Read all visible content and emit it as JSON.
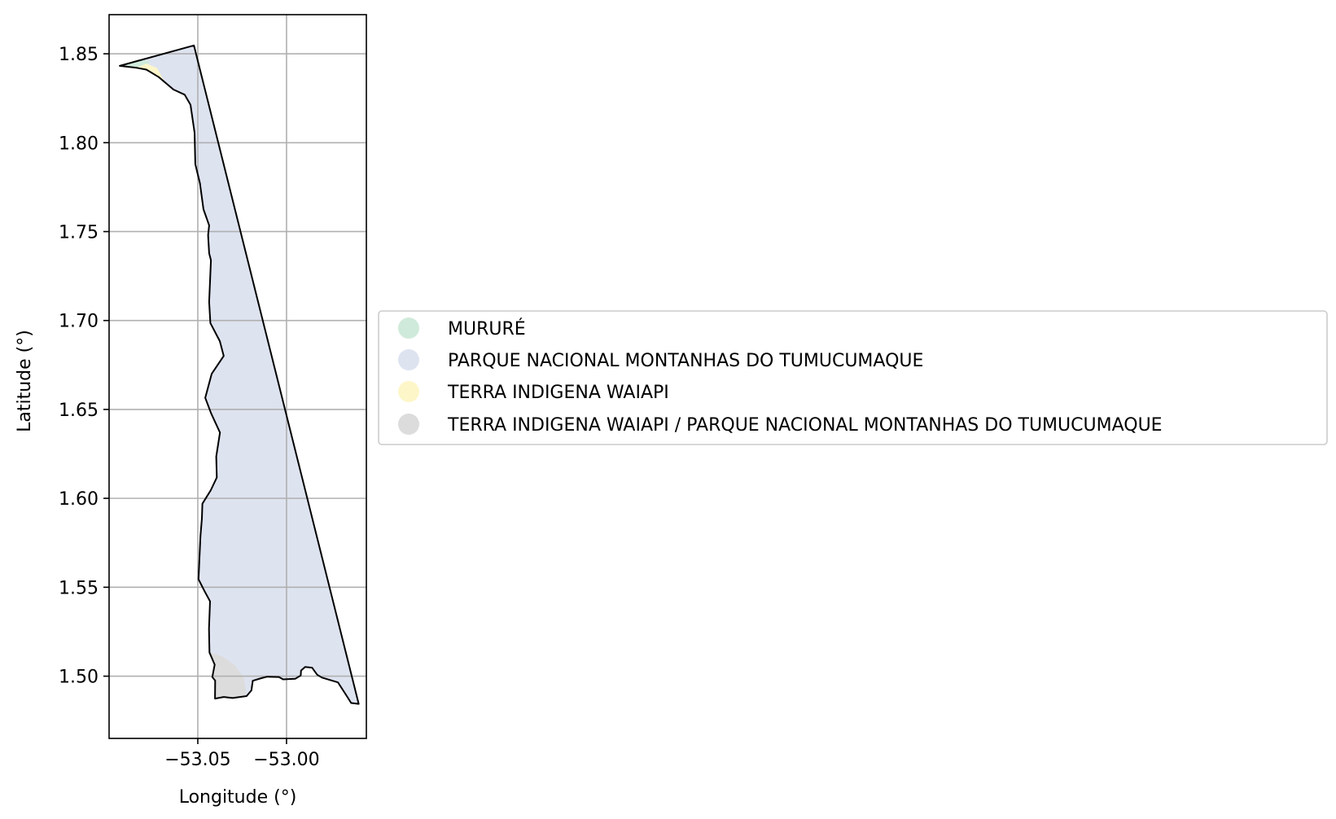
{
  "map": {
    "axes": {
      "xlabel": "Longitude (°)",
      "ylabel": "Latitude (°)",
      "xlim": [
        -53.1,
        -52.955
      ],
      "ylim": [
        1.465,
        1.872
      ],
      "xticks": [
        {
          "value": -53.05,
          "label": "−53.05"
        },
        {
          "value": -53.0,
          "label": "−53.00"
        }
      ],
      "yticks": [
        {
          "value": 1.5,
          "label": "1.50"
        },
        {
          "value": 1.55,
          "label": "1.55"
        },
        {
          "value": 1.6,
          "label": "1.60"
        },
        {
          "value": 1.65,
          "label": "1.65"
        },
        {
          "value": 1.7,
          "label": "1.70"
        },
        {
          "value": 1.75,
          "label": "1.75"
        },
        {
          "value": 1.8,
          "label": "1.80"
        },
        {
          "value": 1.85,
          "label": "1.85"
        }
      ],
      "grid": true
    },
    "legend": {
      "placement": "right",
      "items": [
        {
          "label": "MURURÉ",
          "color": "#cfeadb"
        },
        {
          "label": "PARQUE NACIONAL MONTANHAS DO TUMUCUMAQUE",
          "color": "#dee3f0"
        },
        {
          "label": "TERRA INDIGENA WAIAPI",
          "color": "#fdf6c9"
        },
        {
          "label": "TERRA INDIGENA WAIAPI / PARQUE NACIONAL MONTANHAS DO TUMUCUMAQUE",
          "color": "#dcdcdc"
        }
      ]
    },
    "regions": [
      {
        "name": "PARQUE NACIONAL MONTANHAS DO TUMUCUMAQUE",
        "color": "#dee3f0",
        "outline": true,
        "coords": [
          [
            -53.0522,
            1.8547
          ],
          [
            -52.9593,
            1.4844
          ],
          [
            -52.9636,
            1.4849
          ],
          [
            -52.9666,
            1.4897
          ],
          [
            -52.971,
            1.4965
          ],
          [
            -52.98,
            1.4992
          ],
          [
            -52.9827,
            1.5008
          ],
          [
            -52.9856,
            1.5048
          ],
          [
            -52.9895,
            1.5052
          ],
          [
            -52.9918,
            1.5032
          ],
          [
            -52.992,
            1.5004
          ],
          [
            -52.9951,
            1.4985
          ],
          [
            -53.0019,
            1.4982
          ],
          [
            -53.0043,
            1.4995
          ],
          [
            -53.0109,
            1.4997
          ],
          [
            -53.0142,
            1.4989
          ],
          [
            -53.019,
            1.4974
          ],
          [
            -53.0198,
            1.492
          ],
          [
            -53.0225,
            1.4888
          ],
          [
            -53.0304,
            1.4877
          ],
          [
            -53.0354,
            1.4883
          ],
          [
            -53.0403,
            1.4874
          ],
          [
            -53.0402,
            1.4975
          ],
          [
            -53.0418,
            1.4995
          ],
          [
            -53.0405,
            1.5065
          ],
          [
            -53.0434,
            1.5133
          ],
          [
            -53.0437,
            1.5266
          ],
          [
            -53.0431,
            1.5421
          ],
          [
            -53.0464,
            1.5482
          ],
          [
            -53.0496,
            1.5545
          ],
          [
            -53.0495,
            1.5573
          ],
          [
            -53.0485,
            1.5786
          ],
          [
            -53.0477,
            1.5887
          ],
          [
            -53.0474,
            1.597
          ],
          [
            -53.0428,
            1.6044
          ],
          [
            -53.0393,
            1.6117
          ],
          [
            -53.0396,
            1.6235
          ],
          [
            -53.0375,
            1.637
          ],
          [
            -53.0425,
            1.6478
          ],
          [
            -53.0458,
            1.6565
          ],
          [
            -53.0422,
            1.67
          ],
          [
            -53.0354,
            1.6801
          ],
          [
            -53.0376,
            1.6884
          ],
          [
            -53.0429,
            1.6986
          ],
          [
            -53.0436,
            1.7105
          ],
          [
            -53.0426,
            1.7339
          ],
          [
            -53.0436,
            1.7378
          ],
          [
            -53.0442,
            1.748
          ],
          [
            -53.0436,
            1.7535
          ],
          [
            -53.0468,
            1.7626
          ],
          [
            -53.0488,
            1.7772
          ],
          [
            -53.0514,
            1.7879
          ],
          [
            -53.0518,
            1.8056
          ],
          [
            -53.0541,
            1.8213
          ],
          [
            -53.0574,
            1.827
          ],
          [
            -53.0637,
            1.8299
          ],
          [
            -53.072,
            1.8369
          ],
          [
            -53.079,
            1.8411
          ],
          [
            -53.0845,
            1.8421
          ],
          [
            -53.094,
            1.8432
          ]
        ]
      },
      {
        "name": "MURURÉ",
        "color": "#cfeadb",
        "outline": false,
        "coords": [
          [
            -53.094,
            1.8432
          ],
          [
            -53.083,
            1.847
          ],
          [
            -53.077,
            1.8455
          ],
          [
            -53.08,
            1.8418
          ],
          [
            -53.0845,
            1.8421
          ]
        ]
      },
      {
        "name": "TERRA INDIGENA WAIAPI",
        "color": "#fdf6c9",
        "outline": false,
        "coords": [
          [
            -53.0845,
            1.8421
          ],
          [
            -53.079,
            1.8445
          ],
          [
            -53.073,
            1.842
          ],
          [
            -53.068,
            1.833
          ],
          [
            -53.0637,
            1.8299
          ],
          [
            -53.072,
            1.8369
          ],
          [
            -53.079,
            1.8411
          ]
        ]
      },
      {
        "name": "TERRA INDIGENA WAIAPI / PARQUE NACIONAL MONTANHAS DO TUMUCUMAQUE",
        "color": "#dcdcdc",
        "outline": false,
        "coords": [
          [
            -53.0434,
            1.5133
          ],
          [
            -53.036,
            1.511
          ],
          [
            -53.029,
            1.506
          ],
          [
            -53.024,
            1.499
          ],
          [
            -53.0225,
            1.4888
          ],
          [
            -53.0304,
            1.4877
          ],
          [
            -53.0354,
            1.4883
          ],
          [
            -53.0403,
            1.4874
          ],
          [
            -53.0402,
            1.4975
          ],
          [
            -53.0418,
            1.4995
          ],
          [
            -53.0405,
            1.5065
          ]
        ]
      }
    ]
  }
}
